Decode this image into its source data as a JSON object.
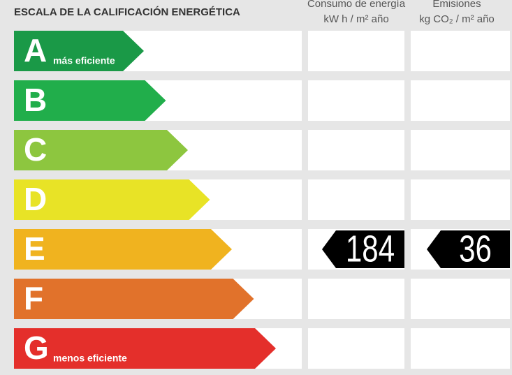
{
  "title": "ESCALA DE LA CALIFICACIÓN ENERGÉTICA",
  "columns": [
    {
      "line1": "Consumo de energía",
      "line2": "kW h  / m² año"
    },
    {
      "line1": "Emisiones",
      "line2": "kg CO₂  / m² año"
    }
  ],
  "rows": [
    {
      "letter": "A",
      "label": "más eficiente",
      "color": "#1a9947"
    },
    {
      "letter": "B",
      "color": "#21ae4b"
    },
    {
      "letter": "C",
      "color": "#8dc63f"
    },
    {
      "letter": "D",
      "color": "#e8e326"
    },
    {
      "letter": "E",
      "color": "#f0b31f",
      "consumo": 184,
      "emisiones": 36
    },
    {
      "letter": "F",
      "color": "#e1722b"
    },
    {
      "letter": "G",
      "label": "menos eficiente",
      "color": "#e42f2b"
    }
  ]
}
